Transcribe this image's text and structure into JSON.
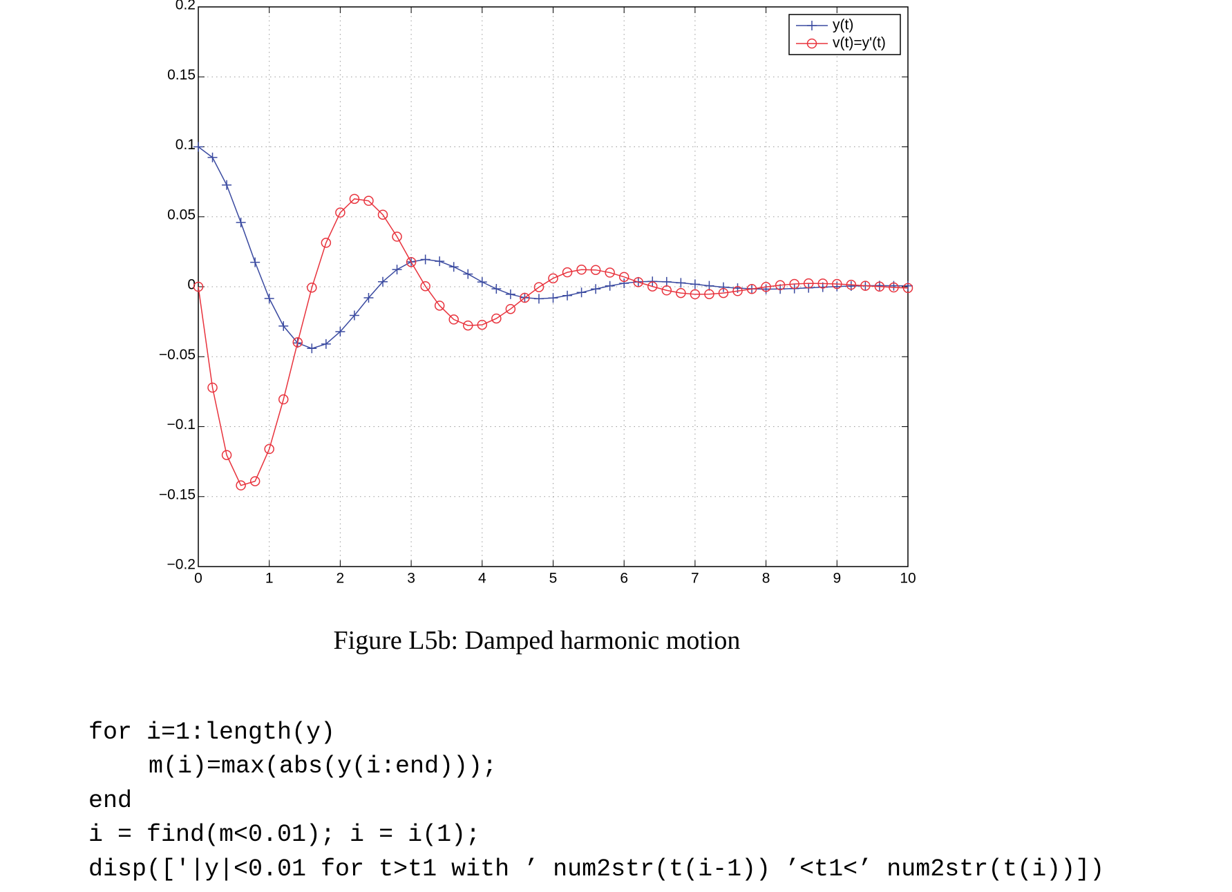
{
  "chart_data": {
    "type": "line",
    "x": [
      0,
      0.2,
      0.4,
      0.6,
      0.8,
      1,
      1.2,
      1.4,
      1.6,
      1.8,
      2,
      2.2,
      2.4,
      2.6,
      2.8,
      3,
      3.2,
      3.4,
      3.6,
      3.8,
      4,
      4.2,
      4.4,
      4.6,
      4.8,
      5,
      5.2,
      5.4,
      5.6,
      5.8,
      6,
      6.2,
      6.4,
      6.6,
      6.8,
      7,
      7.2,
      7.4,
      7.6,
      7.8,
      8,
      8.2,
      8.4,
      8.6,
      8.8,
      9,
      9.2,
      9.4,
      9.6,
      9.8,
      10
    ],
    "series": [
      {
        "name": "y(t)",
        "color": "#3a4aa0",
        "marker": "plus",
        "values": [
          0.1,
          0.0924,
          0.0727,
          0.0459,
          0.0175,
          -0.0084,
          -0.0281,
          -0.0402,
          -0.0441,
          -0.0409,
          -0.0321,
          -0.0205,
          -0.0079,
          0.0036,
          0.0123,
          0.0178,
          0.0195,
          0.0182,
          0.0142,
          0.0091,
          0.0034,
          -0.0015,
          -0.0054,
          -0.0078,
          -0.0086,
          -0.008,
          -0.0063,
          -0.0041,
          -0.0016,
          0.0006,
          0.0025,
          0.0035,
          0.0038,
          0.0035,
          0.0028,
          0.0018,
          0.0007,
          -0.0003,
          -0.001,
          -0.0015,
          -0.0017,
          -0.0016,
          -0.0013,
          -0.0008,
          -0.0003,
          0.0001,
          0.0005,
          0.0007,
          0.0008,
          0.0007,
          0.0006
        ]
      },
      {
        "name": "v(t)=y'(t)",
        "color": "#e8323c",
        "marker": "circle",
        "values": [
          0,
          -0.0721,
          -0.1203,
          -0.142,
          -0.139,
          -0.116,
          -0.0805,
          -0.0397,
          -0.0006,
          0.0314,
          0.053,
          0.0628,
          0.0614,
          0.0515,
          0.0358,
          0.0176,
          0.0004,
          -0.0135,
          -0.0234,
          -0.0277,
          -0.0272,
          -0.0227,
          -0.0159,
          -0.0079,
          -0.0003,
          0.006,
          0.0103,
          0.0122,
          0.012,
          0.0101,
          0.007,
          0.0033,
          0.0002,
          -0.0026,
          -0.0045,
          -0.0054,
          -0.0053,
          -0.0045,
          -0.0031,
          -0.0016,
          -0.0001,
          0.0011,
          0.002,
          0.0024,
          0.0023,
          0.002,
          0.0014,
          0.0007,
          0.0001,
          -0.0005,
          -0.0009
        ]
      }
    ],
    "xlim": [
      0,
      10
    ],
    "ylim": [
      -0.2,
      0.2
    ],
    "xticks": [
      0,
      1,
      2,
      3,
      4,
      5,
      6,
      7,
      8,
      9,
      10
    ],
    "yticks": [
      {
        "value": -0.2,
        "label": "−0.2"
      },
      {
        "value": -0.15,
        "label": "−0.15"
      },
      {
        "value": -0.1,
        "label": "−0.1"
      },
      {
        "value": -0.05,
        "label": "−0.05"
      },
      0,
      0.05,
      0.1,
      0.15,
      0.2
    ],
    "grid": true,
    "legend": "top-right"
  },
  "caption": "Figure L5b: Damped harmonic motion",
  "code": [
    "for i=1:length(y)",
    "m(i)=max(abs(y(i:end)));",
    "end",
    "i = find(m<0.01); i = i(1);",
    "disp(['|y|<0.01 for t>t1 with ’ num2str(t(i-1)) ’<t1<’ num2str(t(i))])"
  ]
}
